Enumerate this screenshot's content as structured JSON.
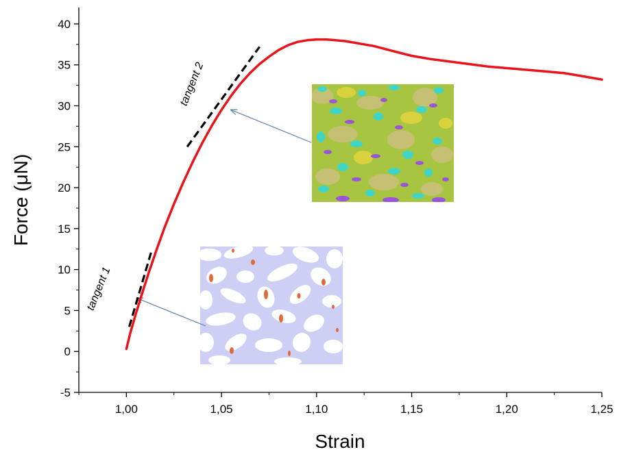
{
  "chart_data": {
    "type": "line",
    "title": "",
    "xlabel": "Strain",
    "ylabel": "Force (μN)",
    "xlim": [
      0.975,
      1.25
    ],
    "ylim": [
      -5,
      42
    ],
    "x_ticks": [
      "1,00",
      "1,05",
      "1,10",
      "1,15",
      "1,20",
      "1,25"
    ],
    "y_ticks": [
      "-5",
      "0",
      "5",
      "10",
      "15",
      "20",
      "25",
      "30",
      "35",
      "40"
    ],
    "grid": false,
    "legend": "none",
    "series": [
      {
        "color": "#e8141c",
        "x": [
          1.0,
          1.002,
          1.005,
          1.008,
          1.012,
          1.016,
          1.02,
          1.025,
          1.03,
          1.035,
          1.04,
          1.045,
          1.05,
          1.055,
          1.06,
          1.065,
          1.07,
          1.075,
          1.08,
          1.085,
          1.09,
          1.095,
          1.1,
          1.105,
          1.11,
          1.115,
          1.12,
          1.125,
          1.13,
          1.135,
          1.14,
          1.145,
          1.15,
          1.155,
          1.16,
          1.17,
          1.18,
          1.19,
          1.2,
          1.21,
          1.22,
          1.23,
          1.24,
          1.25
        ],
        "y": [
          0.3,
          2.2,
          4.6,
          6.9,
          9.8,
          12.5,
          15.1,
          18.0,
          20.7,
          23.2,
          25.5,
          27.6,
          29.5,
          31.2,
          32.7,
          34.0,
          35.1,
          36.0,
          36.8,
          37.4,
          37.8,
          38.0,
          38.1,
          38.1,
          38.0,
          37.9,
          37.7,
          37.5,
          37.3,
          37.0,
          36.7,
          36.4,
          36.1,
          35.9,
          35.7,
          35.4,
          35.1,
          34.8,
          34.6,
          34.4,
          34.2,
          34.0,
          33.6,
          33.2
        ]
      }
    ],
    "tangents": [
      {
        "label": "tangent 1",
        "x": [
          1.0015,
          1.0135
        ],
        "y": [
          3.0,
          12.5
        ]
      },
      {
        "label": "tangent 2",
        "x": [
          1.032,
          1.07
        ],
        "y": [
          25.0,
          37.2
        ]
      }
    ],
    "annotations": [
      {
        "text": "tangent 1",
        "x": 0.987,
        "y": 7.5
      },
      {
        "text": "tangent 2",
        "x": 1.036,
        "y": 32.5
      }
    ],
    "colors": {
      "curve": "#e8141c",
      "tangent": "#000000",
      "arrow": "#5a7fa8"
    }
  },
  "insets": [
    {
      "name": "low-strain-microstructure-inset",
      "points_to": {
        "x": 1.0055,
        "y": 6.5
      }
    },
    {
      "name": "high-strain-microstructure-inset",
      "points_to": {
        "x": 1.055,
        "y": 29.5
      }
    }
  ]
}
